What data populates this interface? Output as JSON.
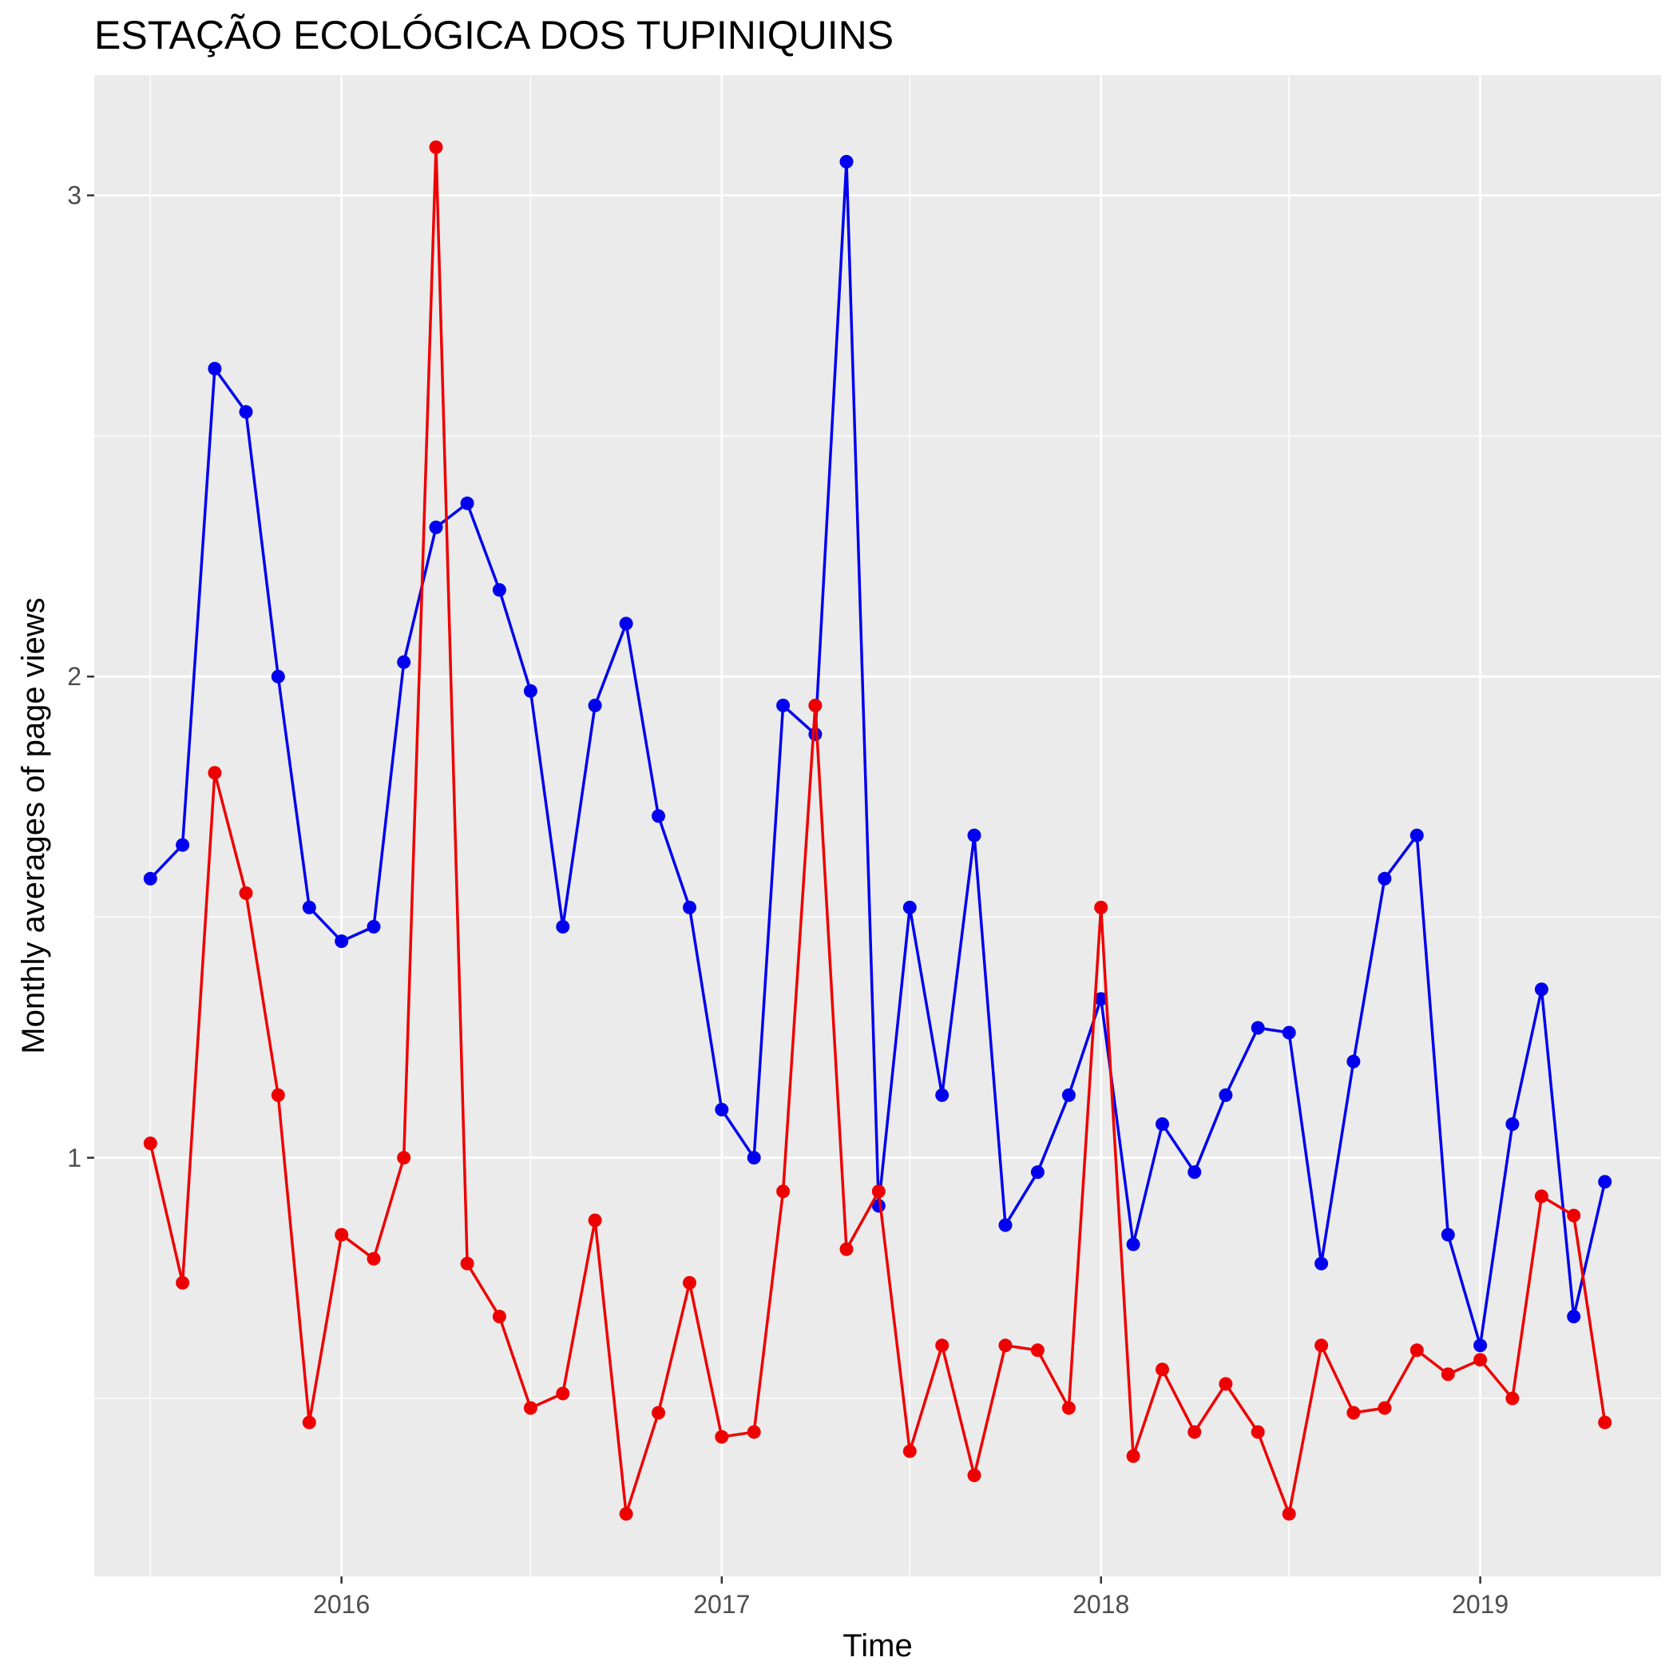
{
  "chart_data": {
    "type": "line",
    "title": "ESTAÇÃO ECOLÓGICA DOS TUPINIQUINS",
    "xlabel": "Time",
    "ylabel": "Monthly averages of page views",
    "x_tick_labels": [
      "2016",
      "2017",
      "2018",
      "2019"
    ],
    "y_tick_labels": [
      "1",
      "2",
      "3"
    ],
    "xlim": [
      "2015-05-08",
      "2019-06-24"
    ],
    "ylim": [
      0.13,
      3.25
    ],
    "grid": true,
    "legend": "none",
    "x": [
      "2015-07",
      "2015-08",
      "2015-09",
      "2015-10",
      "2015-11",
      "2015-12",
      "2016-01",
      "2016-02",
      "2016-03",
      "2016-04",
      "2016-05",
      "2016-06",
      "2016-07",
      "2016-08",
      "2016-09",
      "2016-10",
      "2016-11",
      "2016-12",
      "2017-01",
      "2017-02",
      "2017-03",
      "2017-04",
      "2017-05",
      "2017-06",
      "2017-07",
      "2017-08",
      "2017-09",
      "2017-10",
      "2017-11",
      "2017-12",
      "2018-01",
      "2018-02",
      "2018-03",
      "2018-04",
      "2018-05",
      "2018-06",
      "2018-07",
      "2018-08",
      "2018-09",
      "2018-10",
      "2018-11",
      "2018-12",
      "2019-01",
      "2019-02",
      "2019-03",
      "2019-04",
      "2019-05"
    ],
    "series": [
      {
        "color": "#0000ee",
        "values": [
          1.58,
          1.65,
          2.64,
          2.55,
          2.0,
          1.52,
          1.45,
          1.48,
          2.03,
          2.31,
          2.36,
          2.18,
          1.97,
          1.48,
          1.94,
          2.11,
          1.71,
          1.52,
          1.1,
          1.0,
          1.94,
          1.88,
          3.07,
          0.9,
          1.52,
          1.13,
          1.67,
          0.86,
          0.97,
          1.13,
          1.33,
          0.82,
          1.07,
          0.97,
          1.13,
          1.27,
          1.26,
          0.78,
          1.2,
          1.58,
          1.67,
          0.84,
          0.61,
          1.07,
          1.35,
          0.67,
          0.95
        ]
      },
      {
        "color": "#ee0000",
        "values": [
          1.03,
          0.74,
          1.8,
          1.55,
          1.13,
          0.45,
          0.84,
          0.79,
          1.0,
          3.1,
          0.78,
          0.67,
          0.48,
          0.51,
          0.87,
          0.26,
          0.47,
          0.74,
          0.42,
          0.43,
          0.93,
          1.94,
          0.81,
          0.93,
          0.39,
          0.61,
          0.34,
          0.61,
          0.6,
          0.48,
          1.52,
          0.38,
          0.56,
          0.43,
          0.53,
          0.43,
          0.26,
          0.61,
          0.47,
          0.48,
          0.6,
          0.55,
          0.58,
          0.5,
          0.92,
          0.88,
          0.45
        ]
      }
    ]
  }
}
